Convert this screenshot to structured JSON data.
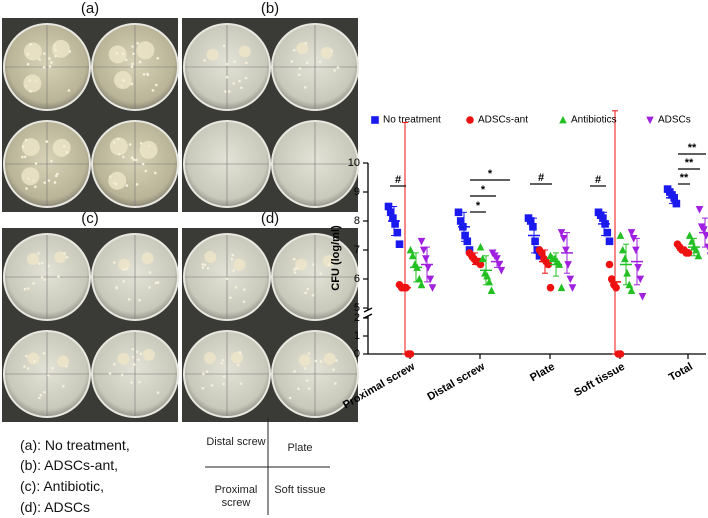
{
  "panels": [
    {
      "label": "(a)"
    },
    {
      "label": "(b)"
    },
    {
      "label": "(c)"
    },
    {
      "label": "(d)"
    }
  ],
  "caption": [
    "(a): No treatment,",
    "(b): ADSCs-ant,",
    "(c): Antibiotic,",
    "(d): ADSCs"
  ],
  "layout_key": {
    "top_left": "Distal screw",
    "top_right": "Plate",
    "bottom_left": "Proximal screw",
    "bottom_right": "Soft tissue"
  },
  "chart_data": {
    "type": "strip",
    "y_label": "CFU (log/ml)",
    "categories": [
      "Proximal screw",
      "Distal screw",
      "Plate",
      "Soft tissue",
      "Total"
    ],
    "ylim": [
      0,
      10
    ],
    "y_break": [
      2,
      5
    ],
    "yticks": [
      0,
      1,
      2,
      5,
      6,
      7,
      8,
      9,
      10
    ],
    "series": [
      {
        "name": "No treatment",
        "color": "#1a1aee",
        "marker": "square",
        "values": [
          [
            8.5,
            8.3,
            8.1,
            7.9,
            7.6,
            7.2
          ],
          [
            8.3,
            8.0,
            7.8,
            7.5,
            7.3,
            7.0
          ],
          [
            8.1,
            8.0,
            7.8,
            7.3,
            7.0,
            6.8
          ],
          [
            8.3,
            8.2,
            8.1,
            7.9,
            7.6,
            7.3
          ],
          [
            9.1,
            9.0,
            8.9,
            8.8,
            8.6
          ]
        ],
        "means": [
          8.0,
          7.8,
          7.5,
          7.9,
          8.8
        ],
        "errors": [
          0.5,
          0.5,
          0.6,
          0.4,
          0.2
        ]
      },
      {
        "name": "ADSCs-ant",
        "color": "#ee1111",
        "marker": "circle",
        "values": [
          [
            5.8,
            5.7,
            5.7,
            5.7,
            0,
            0
          ],
          [
            6.9,
            6.8,
            6.7,
            6.6,
            6.6,
            6.5
          ],
          [
            7.0,
            6.9,
            6.7,
            6.6,
            6.5,
            5.7
          ],
          [
            6.5,
            6.0,
            5.8,
            5.7,
            0,
            0
          ],
          [
            7.2,
            7.1,
            7.0,
            7.0,
            6.9,
            6.9
          ]
        ],
        "means": [
          5.7,
          6.7,
          6.6,
          5.9,
          7.0
        ],
        "errors": [
          5.7,
          0.2,
          0.4,
          5.9,
          0.1
        ]
      },
      {
        "name": "Antibiotics",
        "color": "#22c022",
        "marker": "triangle-up",
        "values": [
          [
            7.0,
            6.8,
            6.5,
            6.4,
            6.0,
            5.8
          ],
          [
            7.1,
            6.7,
            6.2,
            6.1,
            5.9,
            5.6
          ],
          [
            6.8,
            6.7,
            6.7,
            6.6,
            6.5,
            5.7
          ],
          [
            7.5,
            7.0,
            6.7,
            6.2,
            5.8,
            5.6
          ],
          [
            7.5,
            7.3,
            7.1,
            7.0,
            6.8
          ]
        ],
        "means": [
          6.4,
          6.3,
          6.5,
          6.5,
          7.1
        ],
        "errors": [
          0.5,
          0.5,
          0.4,
          0.7,
          0.3
        ]
      },
      {
        "name": "ADSCs",
        "color": "#a020e0",
        "marker": "triangle-down",
        "values": [
          [
            7.3,
            7.0,
            6.7,
            6.4,
            6.0,
            5.7
          ],
          [
            6.9,
            6.8,
            6.7,
            6.5,
            6.3
          ],
          [
            7.6,
            7.4,
            7.0,
            6.5,
            6.0,
            5.7
          ],
          [
            7.6,
            7.4,
            7.0,
            6.4,
            6.0,
            5.4
          ],
          [
            8.4,
            7.8,
            7.7,
            7.5,
            7.1,
            6.8
          ]
        ],
        "means": [
          6.5,
          6.6,
          6.9,
          6.6,
          7.6
        ],
        "errors": [
          0.6,
          0.2,
          0.7,
          0.8,
          0.5
        ]
      }
    ],
    "annotations": [
      "#",
      "*",
      "*",
      "*",
      "#",
      "#",
      "**",
      "**",
      "**"
    ]
  }
}
